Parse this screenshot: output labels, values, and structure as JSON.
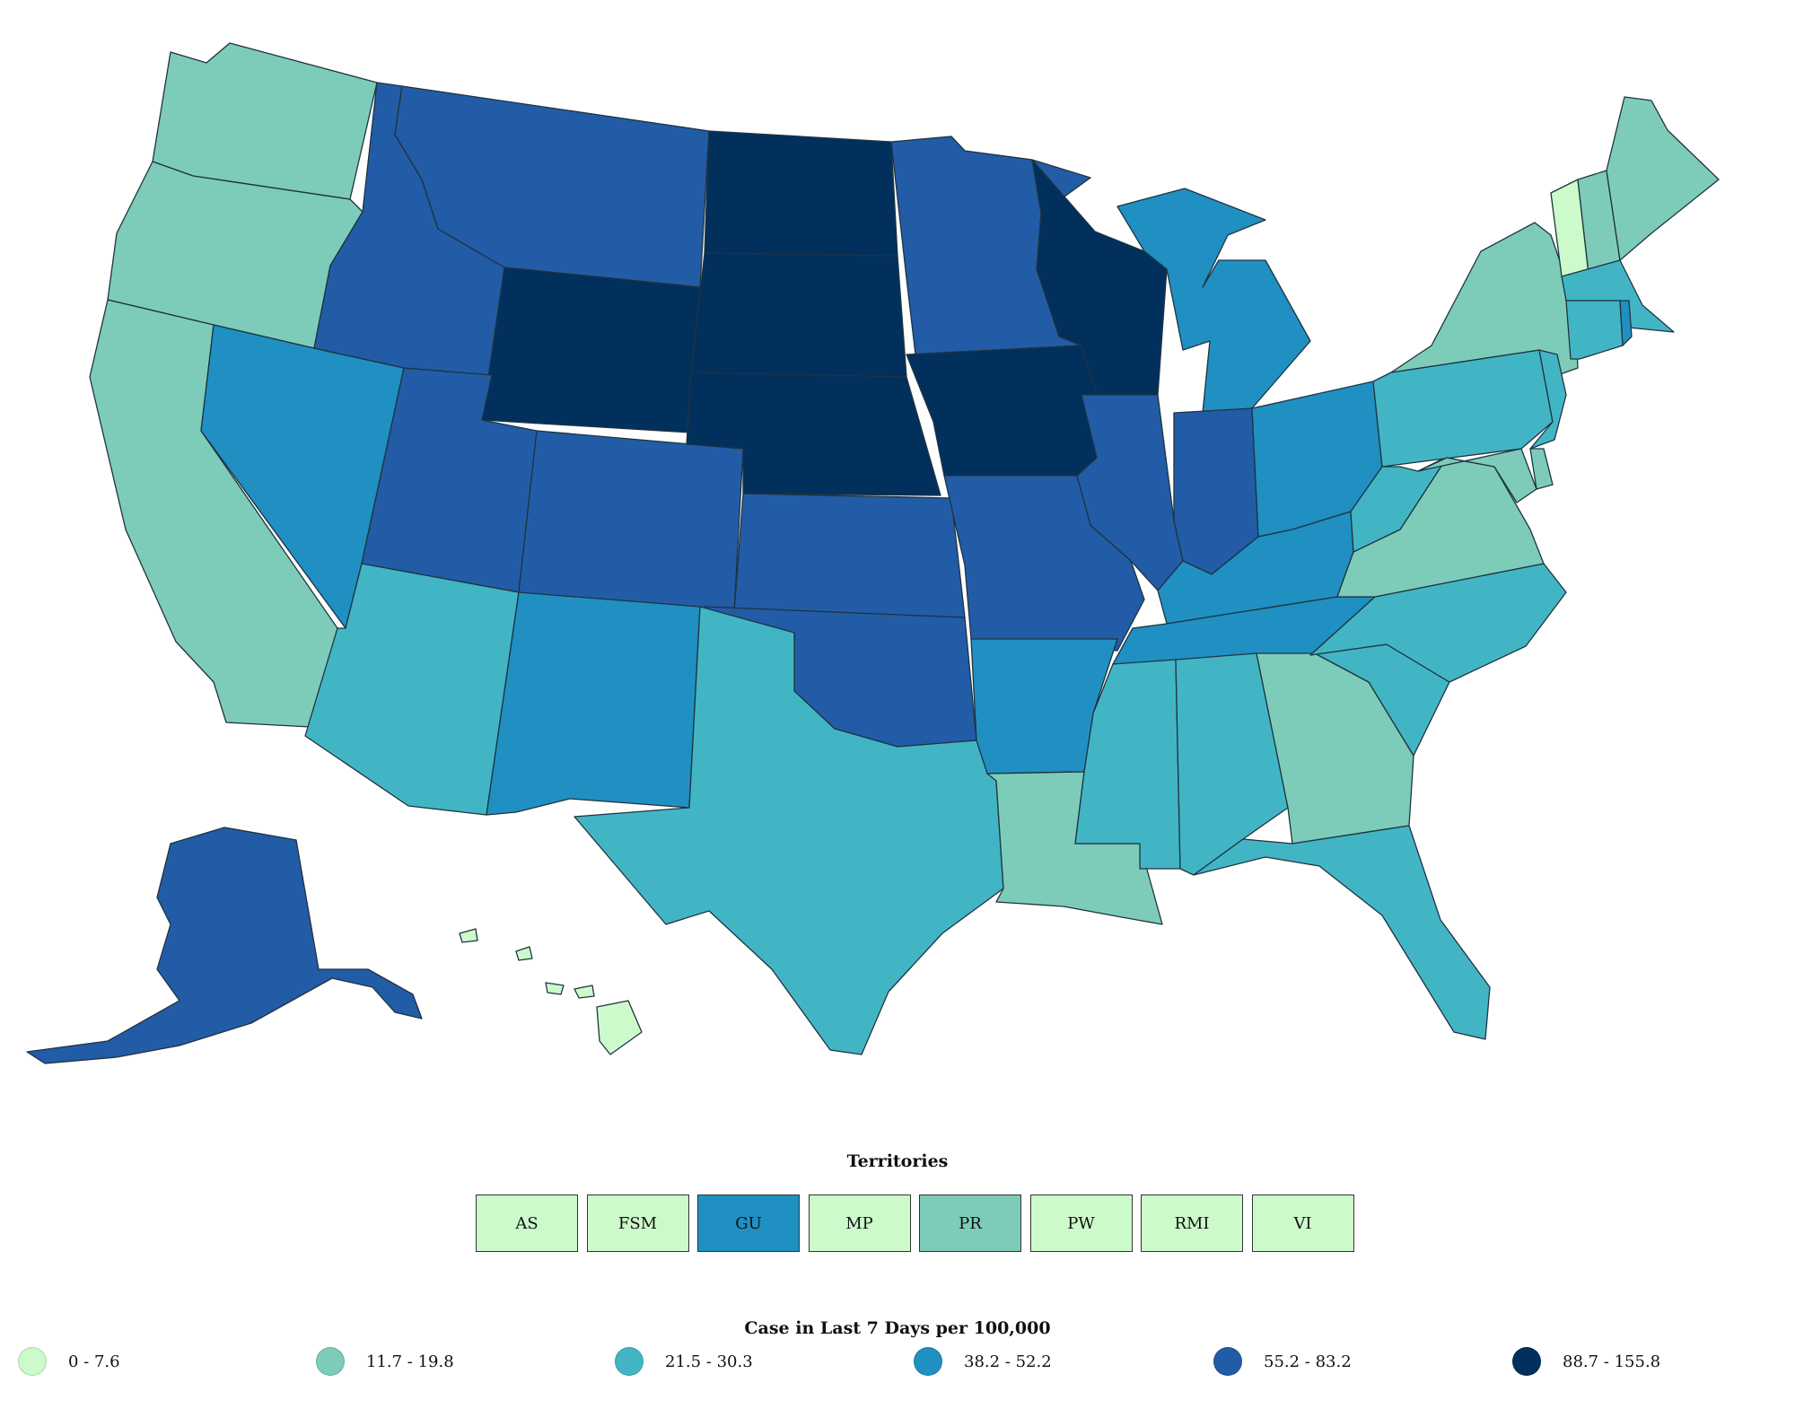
{
  "colors": {
    "bin0": "#ccfacb",
    "bin1": "#7dccb9",
    "bin2": "#42b5c5",
    "bin3": "#1f90c1",
    "bin4": "#225ca6",
    "bin5": "#02305d"
  },
  "territories": {
    "title": "Territories",
    "items": [
      {
        "code": "AS",
        "bin": 0
      },
      {
        "code": "FSM",
        "bin": 0
      },
      {
        "code": "GU",
        "bin": 3
      },
      {
        "code": "MP",
        "bin": 0
      },
      {
        "code": "PR",
        "bin": 1
      },
      {
        "code": "PW",
        "bin": 0
      },
      {
        "code": "RMI",
        "bin": 0
      },
      {
        "code": "VI",
        "bin": 0
      }
    ]
  },
  "legend": {
    "title": "Case in Last 7 Days per 100,000",
    "items": [
      {
        "label": "0 - 7.6",
        "bin": 0
      },
      {
        "label": "11.7 - 19.8",
        "bin": 1
      },
      {
        "label": "21.5 - 30.3",
        "bin": 2
      },
      {
        "label": "38.2 - 52.2",
        "bin": 3
      },
      {
        "label": "55.2 - 83.2",
        "bin": 4
      },
      {
        "label": "88.7 - 155.8",
        "bin": 5
      }
    ]
  },
  "states": {
    "WA": 1,
    "OR": 1,
    "CA": 1,
    "NV": 3,
    "ID": 4,
    "MT": 4,
    "WY": 5,
    "UT": 4,
    "AZ": 2,
    "CO": 4,
    "NM": 3,
    "ND": 5,
    "SD": 5,
    "NE": 5,
    "KS": 4,
    "OK": 4,
    "TX": 2,
    "MN": 4,
    "IA": 5,
    "MO": 4,
    "AR": 3,
    "LA": 1,
    "WI": 5,
    "IL": 4,
    "MI": 3,
    "IN": 4,
    "OH": 3,
    "KY": 3,
    "TN": 3,
    "MS": 2,
    "AL": 2,
    "GA": 1,
    "FL": 2,
    "SC": 2,
    "NC": 2,
    "VA": 1,
    "WV": 2,
    "PA": 2,
    "NY": 1,
    "VT": 0,
    "NH": 1,
    "ME": 1,
    "MA": 2,
    "CT": 2,
    "RI": 3,
    "NJ": 2,
    "DE": 1,
    "MD": 1,
    "AK": 4,
    "HI": 0
  }
}
